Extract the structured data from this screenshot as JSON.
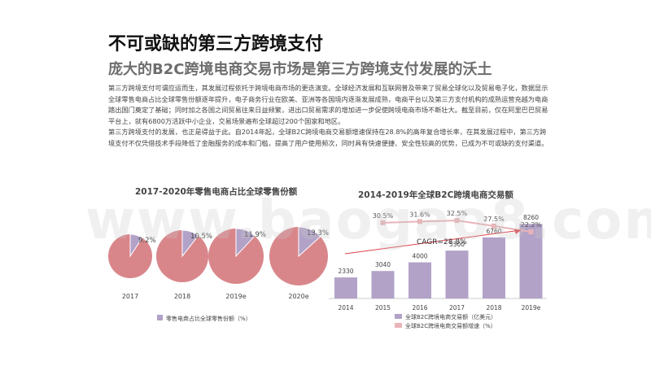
{
  "slide": {
    "title": "不可或缺的第三方跨境支付",
    "subtitle": "庞大的B2C跨境电商交易市场是第三方跨境支付发展的沃土",
    "paragraph1": "第三方跨境支付可谓应运而生，其发展过程依托于跨境电商市场的更迭演变。全球经济发展和互联网普及带来了贸易全球化以及贸易电子化，数据显示全球零售电商占比全球零售份额逐年提升，电子商务行业在欧美、亚洲等各国境内逐渐发展成熟，电商平台以及第三方支付机构的成熟运营充越为电商踏出国门奠定了基础；同时加之各国之间贸易往来日益频繁，进出口贸易需求的增加进一步促使跨境电商市场不断壮大。截至目前，仅在阿里巴巴贸易平台上，就有6800万活跃中小企业，交易场景遍布全球超过200个国家和地区。",
    "paragraph2": "第三方跨境支付的发展，也正是得益于此。自2014年起，全球B2C跨境电商交易额增速保持在28.8%的高年复合增长率，在其发展过程中，第三方跨境支付不仅凭借技术手段降低了金融服务的成本和门槛，提高了用户使用频次，同时具有快速便捷、安全性较高的优势，已成为不可或缺的支付渠道。",
    "watermark": "www.baogao8.com"
  },
  "colors": {
    "pink": "#d9868b",
    "pie_slice": "#b2a2c8",
    "bar": "#b2a2c8",
    "growth": "#e8b4b8",
    "cagr_arrow": "#e0424a"
  },
  "chart_data": [
    {
      "type": "pie",
      "title": "2017-2020年零售电商占比全球零售份额",
      "categories": [
        "2017",
        "2018",
        "2019e",
        "2020e"
      ],
      "values": [
        9.2,
        10.5,
        11.9,
        13.3
      ],
      "value_labels": [
        "9.2%",
        "10.5%",
        "11.9%",
        "13.3%"
      ],
      "legend": [
        "零售电商占比全球零售份额（%）"
      ],
      "legend_position": "bottom"
    },
    {
      "type": "bar",
      "title": "2014-2019年全球B2C跨境电商交易额",
      "categories": [
        "2014",
        "2015",
        "2016",
        "2017",
        "2018",
        "2019e"
      ],
      "series": [
        {
          "name": "全球B2C跨境电商交易额（亿美元）",
          "type": "bar",
          "values": [
            2330,
            3040,
            4000,
            5300,
            6760,
            8260
          ]
        },
        {
          "name": "全球B2C跨境电商交易额增速（%）",
          "type": "line",
          "values": [
            null,
            30.5,
            31.6,
            32.5,
            27.5,
            22.2
          ],
          "labels": [
            "",
            "30.5%",
            "31.6%",
            "32.5%",
            "27.5%",
            "22.2%"
          ]
        }
      ],
      "annotation": "CAGR=28.8%",
      "ylim": [
        0,
        9000
      ],
      "legend_position": "bottom"
    }
  ]
}
